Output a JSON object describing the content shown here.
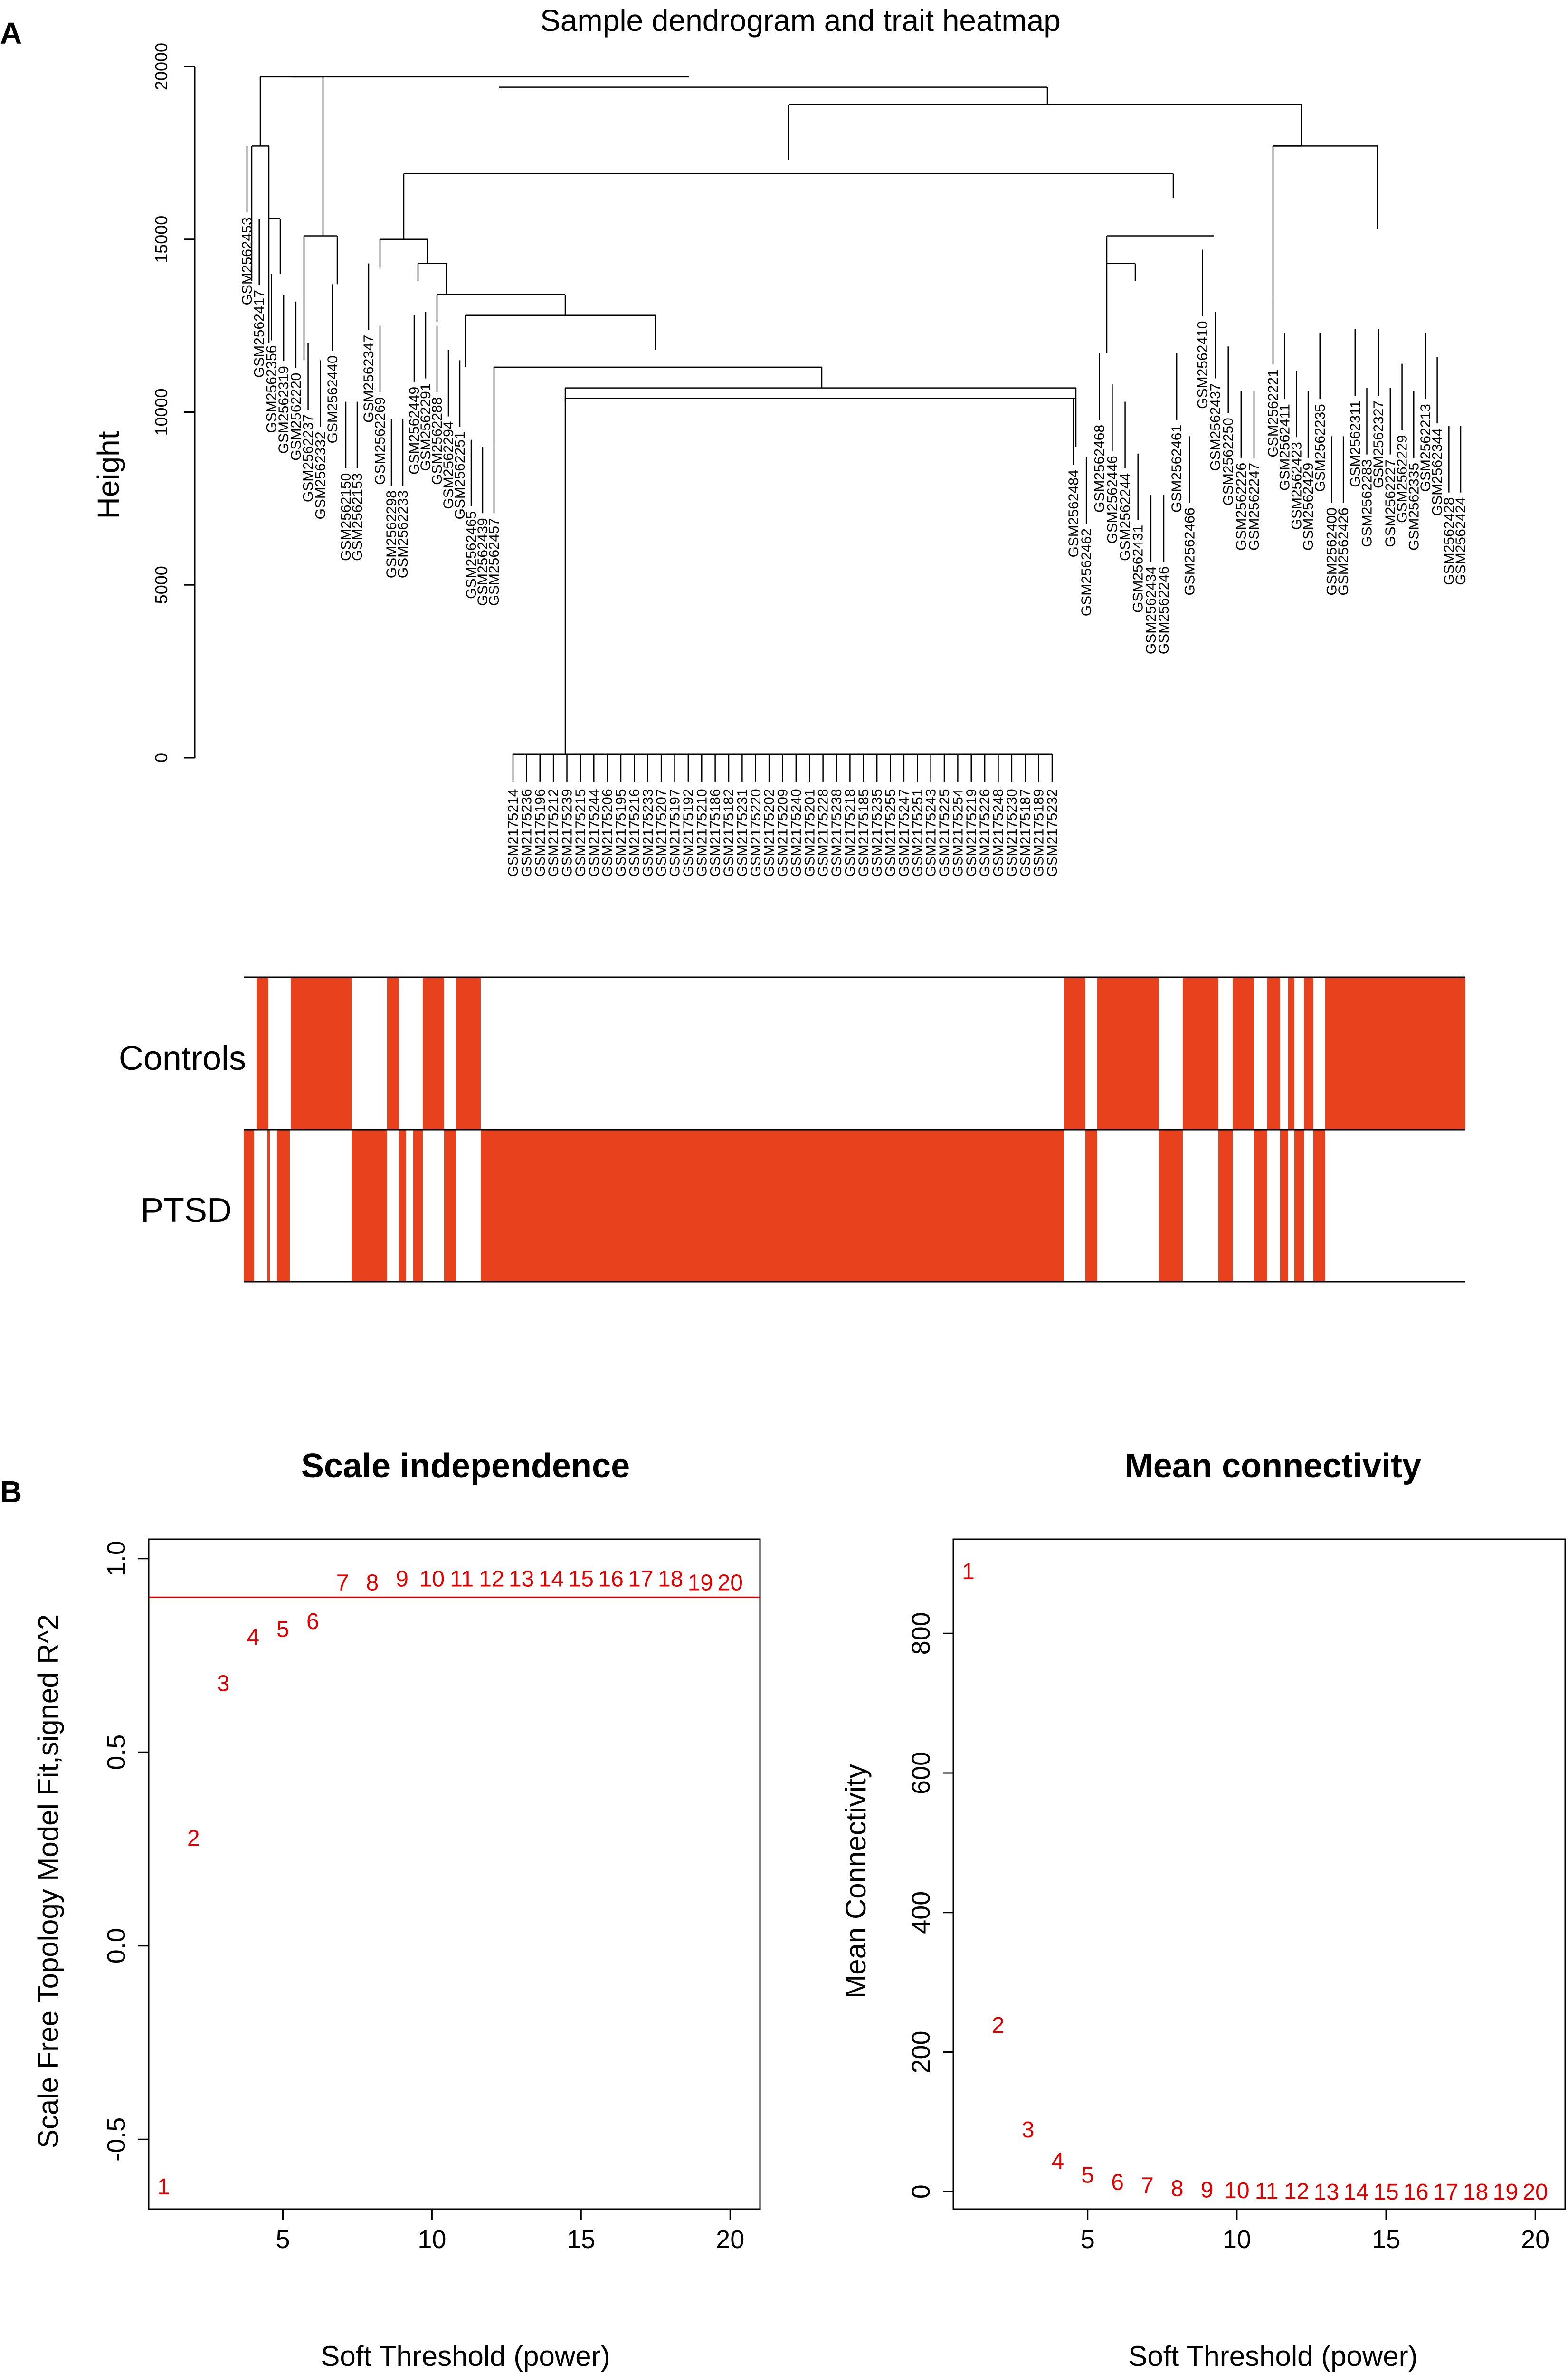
{
  "panels": {
    "a_label": "A",
    "b_label": "B"
  },
  "colors": {
    "trait_fill": "#e8411e",
    "point_label": "#e00000",
    "threshold_line": "#e00000",
    "ink": "#000000"
  },
  "chart_data": [
    {
      "type": "dendrogram",
      "title": "Sample dendrogram and trait heatmap",
      "ylabel": "Height",
      "ylim": [
        0,
        20000
      ],
      "yticks": [
        0,
        5000,
        10000,
        15000,
        20000
      ],
      "leaf_labels": {
        "left_cluster_a": [
          "GSM2562453",
          "GSM2562417",
          "GSM2562356",
          "GSM2562319",
          "GSM2562220",
          "GSM2562237",
          "GSM2562332",
          "GSM2562440"
        ],
        "left_cluster_b": [
          "GSM2562150",
          "GSM2562153",
          "GSM2562347",
          "GSM2562269",
          "GSM2562298",
          "GSM2562233",
          "GSM2562449",
          "GSM2562291",
          "GSM2562288",
          "GSM2562294",
          "GSM2562251",
          "GSM2562465",
          "GSM2562439",
          "GSM2562457"
        ],
        "center_cluster": [
          "GSM2175214",
          "GSM2175236",
          "GSM2175196",
          "GSM2175212",
          "GSM2175239",
          "GSM2175215",
          "GSM2175244",
          "GSM2175206",
          "GSM2175195",
          "GSM2175216",
          "GSM2175233",
          "GSM2175207",
          "GSM2175197",
          "GSM2175192",
          "GSM2175210",
          "GSM2175186",
          "GSM2175182",
          "GSM2175231",
          "GSM2175220",
          "GSM2175202",
          "GSM2175209",
          "GSM2175240",
          "GSM2175201",
          "GSM2175228",
          "GSM2175238",
          "GSM2175218",
          "GSM2175185",
          "GSM2175235",
          "GSM2175255",
          "GSM2175247",
          "GSM2175251",
          "GSM2175243",
          "GSM2175225",
          "GSM2175254",
          "GSM2175219",
          "GSM2175226",
          "GSM2175248",
          "GSM2175230",
          "GSM2175187",
          "GSM2175189",
          "GSM2175232"
        ],
        "right_cluster_a": [
          "GSM2562484",
          "GSM2562462",
          "GSM2562468",
          "GSM2562446",
          "GSM2562244",
          "GSM2562431",
          "GSM2562434",
          "GSM2562246",
          "GSM2562461",
          "GSM2562466",
          "GSM2562410",
          "GSM2562437",
          "GSM2562250",
          "GSM2562226",
          "GSM2562247"
        ],
        "right_cluster_b": [
          "GSM2562221",
          "GSM2562411",
          "GSM2562423",
          "GSM2562429",
          "GSM2562235",
          "GSM2562400",
          "GSM2562426",
          "GSM2562311",
          "GSM2562283",
          "GSM2562327",
          "GSM2562227",
          "GSM2562229",
          "GSM2562335",
          "GSM2562213",
          "GSM2562344",
          "GSM2562428",
          "GSM2562424"
        ]
      }
    },
    {
      "type": "heatmap",
      "rows": [
        "Controls",
        "PTSD"
      ],
      "legend": "none"
    },
    {
      "type": "scatter",
      "title": "Scale independence",
      "xlabel": "Soft Threshold (power)",
      "ylabel": "Scale Free Topology Model Fit,signed R^2",
      "xlim": [
        0.5,
        21
      ],
      "ylim": [
        -0.68,
        1.05
      ],
      "xticks": [
        5,
        10,
        15,
        20
      ],
      "yticks": [
        -0.5,
        0.0,
        0.5,
        1.0
      ],
      "ytick_labels": [
        "-0.5",
        "0.0",
        "0.5",
        "1.0"
      ],
      "hline": 0.9,
      "x": [
        1,
        2,
        3,
        4,
        5,
        6,
        7,
        8,
        9,
        10,
        11,
        12,
        13,
        14,
        15,
        16,
        17,
        18,
        19,
        20
      ],
      "y": [
        -0.62,
        0.28,
        0.68,
        0.8,
        0.82,
        0.84,
        0.94,
        0.94,
        0.95,
        0.95,
        0.95,
        0.95,
        0.95,
        0.95,
        0.95,
        0.95,
        0.95,
        0.95,
        0.94,
        0.94
      ],
      "point_labels": [
        "1",
        "2",
        "3",
        "4",
        "5",
        "6",
        "7",
        "8",
        "9",
        "10",
        "11",
        "12",
        "13",
        "14",
        "15",
        "16",
        "17",
        "18",
        "19",
        "20"
      ]
    },
    {
      "type": "scatter",
      "title": "Mean connectivity",
      "xlabel": "Soft Threshold (power)",
      "ylabel": "Mean Connectivity",
      "xlim": [
        0.5,
        21
      ],
      "ylim": [
        -25,
        935
      ],
      "xticks": [
        5,
        10,
        15,
        20
      ],
      "yticks": [
        0,
        200,
        400,
        600,
        800
      ],
      "ytick_labels": [
        "0",
        "200",
        "400",
        "600",
        "800"
      ],
      "x": [
        1,
        2,
        3,
        4,
        5,
        6,
        7,
        8,
        9,
        10,
        11,
        12,
        13,
        14,
        15,
        16,
        17,
        18,
        19,
        20
      ],
      "y": [
        890,
        240,
        90,
        45,
        25,
        15,
        10,
        6,
        4,
        3,
        2,
        2,
        1,
        1,
        1,
        1,
        1,
        1,
        1,
        1
      ],
      "point_labels": [
        "1",
        "2",
        "3",
        "4",
        "5",
        "6",
        "7",
        "8",
        "9",
        "10",
        "11",
        "12",
        "13",
        "14",
        "15",
        "16",
        "17",
        "18",
        "19",
        "20"
      ]
    }
  ]
}
